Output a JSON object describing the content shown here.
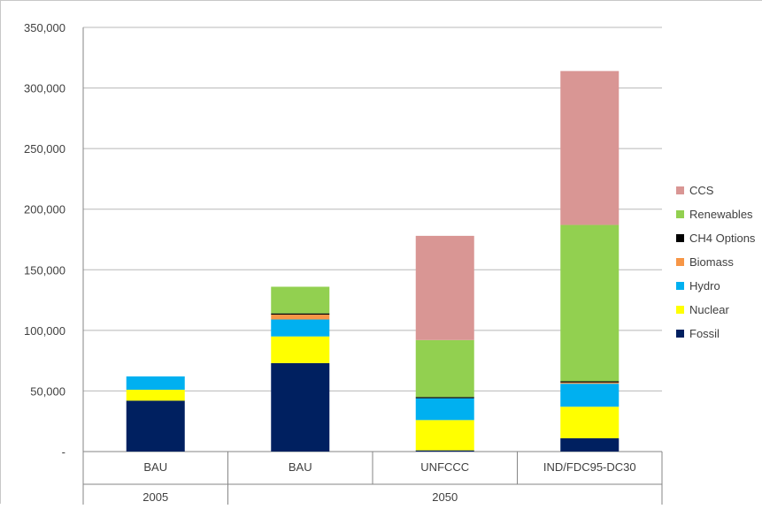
{
  "chart_data": {
    "type": "bar",
    "stacked": true,
    "categories": [
      {
        "label": "BAU",
        "group": "2005"
      },
      {
        "label": "BAU",
        "group": "2050"
      },
      {
        "label": "UNFCCC",
        "group": "2050"
      },
      {
        "label": "IND/FDC95-DC30",
        "group": "2050"
      }
    ],
    "groups": [
      "2005",
      "2050"
    ],
    "series": [
      {
        "name": "Fossil",
        "color": "#002060",
        "values": [
          42000,
          73000,
          1000,
          11000
        ]
      },
      {
        "name": "Nuclear",
        "color": "#ffff00",
        "values": [
          9000,
          22000,
          25000,
          26000
        ]
      },
      {
        "name": "Hydro",
        "color": "#00b0f0",
        "values": [
          11000,
          14000,
          18000,
          19000
        ]
      },
      {
        "name": "Biomass",
        "color": "#f79646",
        "values": [
          0,
          4000,
          0,
          1000
        ]
      },
      {
        "name": "CH4 Options",
        "color": "#000000",
        "values": [
          0,
          1000,
          1000,
          1000
        ]
      },
      {
        "name": "Renewables",
        "color": "#92d050",
        "values": [
          0,
          22000,
          47000,
          129000
        ]
      },
      {
        "name": "CCS",
        "color": "#d99694",
        "values": [
          0,
          0,
          86000,
          127000
        ]
      }
    ],
    "ylim": [
      0,
      350000
    ],
    "yticks": [
      {
        "value": 0,
        "label": "-"
      },
      {
        "value": 50000,
        "label": "50,000"
      },
      {
        "value": 100000,
        "label": "100,000"
      },
      {
        "value": 150000,
        "label": "150,000"
      },
      {
        "value": 200000,
        "label": "200,000"
      },
      {
        "value": 250000,
        "label": "250,000"
      },
      {
        "value": 300000,
        "label": "300,000"
      },
      {
        "value": 350000,
        "label": "350,000"
      }
    ],
    "grid": true,
    "legend_position": "right",
    "legend_order": [
      "CCS",
      "Renewables",
      "CH4 Options",
      "Biomass",
      "Hydro",
      "Nuclear",
      "Fossil"
    ]
  }
}
